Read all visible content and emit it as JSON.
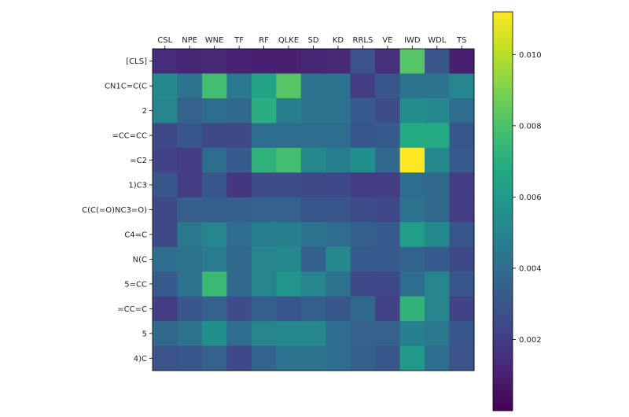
{
  "chart_data": {
    "type": "heatmap",
    "title": "",
    "xlabel": "",
    "ylabel": "",
    "x_categories": [
      "CSL",
      "NPE",
      "WNE",
      "TF",
      "RF",
      "QLKE",
      "SD",
      "KD",
      "RRLS",
      "VE",
      "IWD",
      "WDL",
      "TS"
    ],
    "y_categories": [
      "[CLS]",
      "CN1C=C(C",
      "2",
      "=CC=CC",
      "=C2",
      "1)C3",
      "C(C(=O)NC3=O)",
      "C4=C",
      "N(C",
      "5=CC",
      "=CC=C",
      "5",
      "4)C"
    ],
    "values": [
      [
        0.0014,
        0.0012,
        0.0013,
        0.0011,
        0.001,
        0.001,
        0.0012,
        0.0013,
        0.0028,
        0.0015,
        0.0082,
        0.003,
        0.001
      ],
      [
        0.0052,
        0.0042,
        0.0078,
        0.0045,
        0.0065,
        0.0082,
        0.0042,
        0.0042,
        0.002,
        0.003,
        0.0042,
        0.0042,
        0.005
      ],
      [
        0.005,
        0.0035,
        0.004,
        0.0038,
        0.007,
        0.0048,
        0.0042,
        0.0042,
        0.0032,
        0.0026,
        0.0054,
        0.0052,
        0.004
      ],
      [
        0.0025,
        0.003,
        0.0025,
        0.0025,
        0.004,
        0.004,
        0.004,
        0.004,
        0.003,
        0.0032,
        0.0068,
        0.0068,
        0.003
      ],
      [
        0.0022,
        0.002,
        0.004,
        0.0032,
        0.0072,
        0.0078,
        0.0052,
        0.0048,
        0.0055,
        0.0038,
        0.0112,
        0.0052,
        0.0032
      ],
      [
        0.003,
        0.002,
        0.003,
        0.0018,
        0.0026,
        0.0026,
        0.0025,
        0.0024,
        0.002,
        0.002,
        0.004,
        0.0038,
        0.002
      ],
      [
        0.0025,
        0.0033,
        0.0033,
        0.0033,
        0.0035,
        0.0035,
        0.003,
        0.003,
        0.0026,
        0.0024,
        0.0042,
        0.0038,
        0.002
      ],
      [
        0.0025,
        0.0045,
        0.005,
        0.004,
        0.0048,
        0.0048,
        0.0042,
        0.004,
        0.0034,
        0.0032,
        0.0062,
        0.0052,
        0.003
      ],
      [
        0.004,
        0.0042,
        0.0046,
        0.0038,
        0.005,
        0.0052,
        0.0034,
        0.0052,
        0.0032,
        0.0032,
        0.0036,
        0.0032,
        0.0025
      ],
      [
        0.0032,
        0.0042,
        0.0075,
        0.0038,
        0.005,
        0.0058,
        0.005,
        0.0042,
        0.0025,
        0.0024,
        0.004,
        0.005,
        0.003
      ],
      [
        0.002,
        0.003,
        0.0035,
        0.0026,
        0.0034,
        0.003,
        0.0034,
        0.003,
        0.0038,
        0.0022,
        0.0072,
        0.005,
        0.0022
      ],
      [
        0.0038,
        0.0042,
        0.0055,
        0.004,
        0.005,
        0.0052,
        0.0052,
        0.004,
        0.0035,
        0.0035,
        0.0048,
        0.0045,
        0.003
      ],
      [
        0.0028,
        0.003,
        0.0035,
        0.0024,
        0.0036,
        0.0042,
        0.0042,
        0.004,
        0.0034,
        0.003,
        0.006,
        0.004,
        0.0028
      ]
    ],
    "colorbar": {
      "min": 0.0,
      "max": 0.0112,
      "ticks": [
        0.002,
        0.004,
        0.006,
        0.008,
        0.01
      ],
      "tick_labels": [
        "0.002",
        "0.004",
        "0.006",
        "0.008",
        "0.010"
      ]
    },
    "colormap": "viridis",
    "grid": false,
    "xtick_position": "top"
  },
  "colors": {
    "viridis_stops": [
      "#440154",
      "#482475",
      "#414487",
      "#355f8d",
      "#2a788e",
      "#21918c",
      "#22a884",
      "#44bf70",
      "#7ad151",
      "#bddf26",
      "#fde725"
    ],
    "axis_line": "#000000",
    "tick_text": "#222222"
  }
}
